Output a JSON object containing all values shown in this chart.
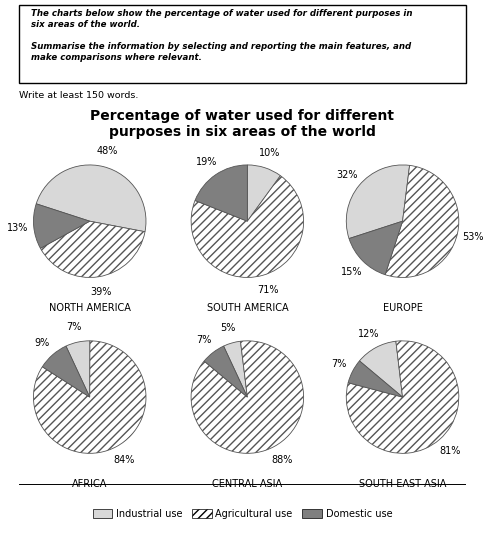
{
  "title": "Percentage of water used for different\npurposes in six areas of the world",
  "regions": [
    {
      "name": "NORTH AMERICA",
      "industrial": 48,
      "agricultural": 39,
      "domestic": 13,
      "start_angle": 162
    },
    {
      "name": "SOUTH AMERICA",
      "industrial": 10,
      "agricultural": 71,
      "domestic": 19,
      "start_angle": 90
    },
    {
      "name": "EUROPE",
      "industrial": 32,
      "agricultural": 53,
      "domestic": 15,
      "start_angle": 198
    },
    {
      "name": "AFRICA",
      "industrial": 7,
      "agricultural": 84,
      "domestic": 9,
      "start_angle": 115
    },
    {
      "name": "CENTRAL ASIA",
      "industrial": 5,
      "agricultural": 88,
      "domestic": 7,
      "start_angle": 115
    },
    {
      "name": "SOUTH EAST ASIA",
      "industrial": 12,
      "agricultural": 81,
      "domestic": 7,
      "start_angle": 140
    }
  ],
  "colors": {
    "industrial": "#d8d8d8",
    "agricultural": "#ffffff",
    "domestic": "#7f7f7f"
  },
  "hatch": {
    "industrial": "",
    "agricultural": "////",
    "domestic": ""
  },
  "legend_labels": [
    "Industrial use",
    "Agricultural use",
    "Domestic use"
  ],
  "subtext": "Write at least 150 words.",
  "title_fontsize": 10,
  "label_fontsize": 7,
  "region_fontsize": 7
}
